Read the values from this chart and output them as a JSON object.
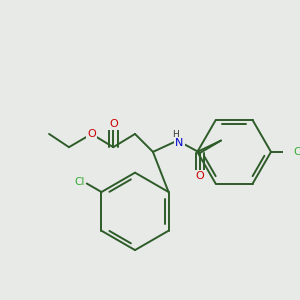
{
  "background_color": "#e8eae8",
  "bond_color": "#2d5c28",
  "bond_lw": 1.4,
  "atom_colors": {
    "O": "#cc0000",
    "N": "#0000cc",
    "Cl": "#33aa30",
    "H": "#333333"
  },
  "font_size": 7.5,
  "figsize": [
    3.0,
    3.0
  ],
  "dpi": 100
}
